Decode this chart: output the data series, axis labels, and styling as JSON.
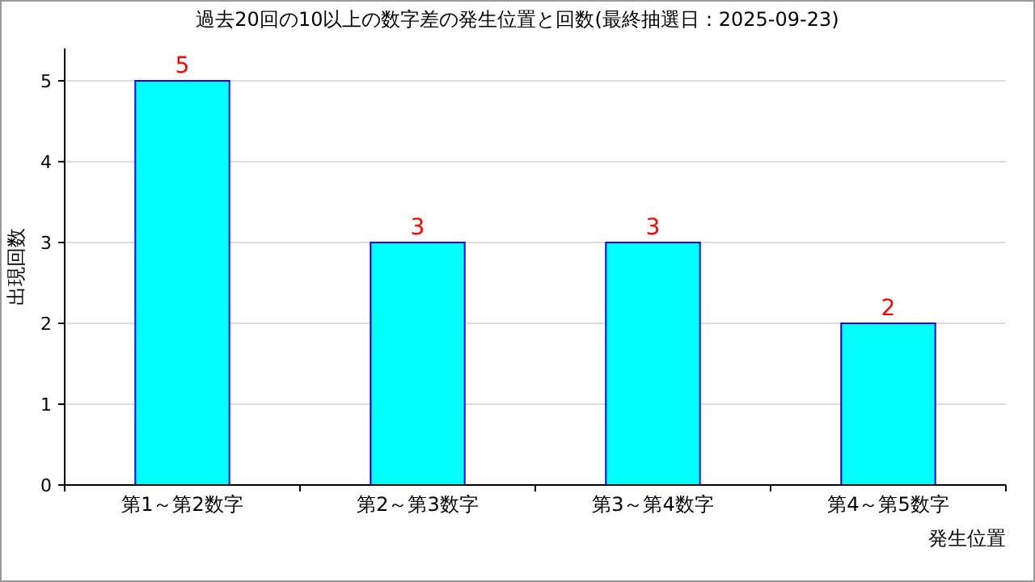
{
  "chart_data": {
    "type": "bar",
    "title": "過去20回の10以上の数字差の発生位置と回数(最終抽選日：2025-09-23)",
    "xlabel": "発生位置",
    "ylabel": "出現回数",
    "categories": [
      "第1～第2数字",
      "第2～第3数字",
      "第3～第4数字",
      "第4～第5数字"
    ],
    "values": [
      5,
      3,
      3,
      2
    ],
    "color": "#00ffff",
    "ylim": [
      0,
      5.4
    ],
    "yticks": [
      0,
      1,
      2,
      3,
      4,
      5
    ],
    "grid": "y",
    "data_labels": true
  }
}
